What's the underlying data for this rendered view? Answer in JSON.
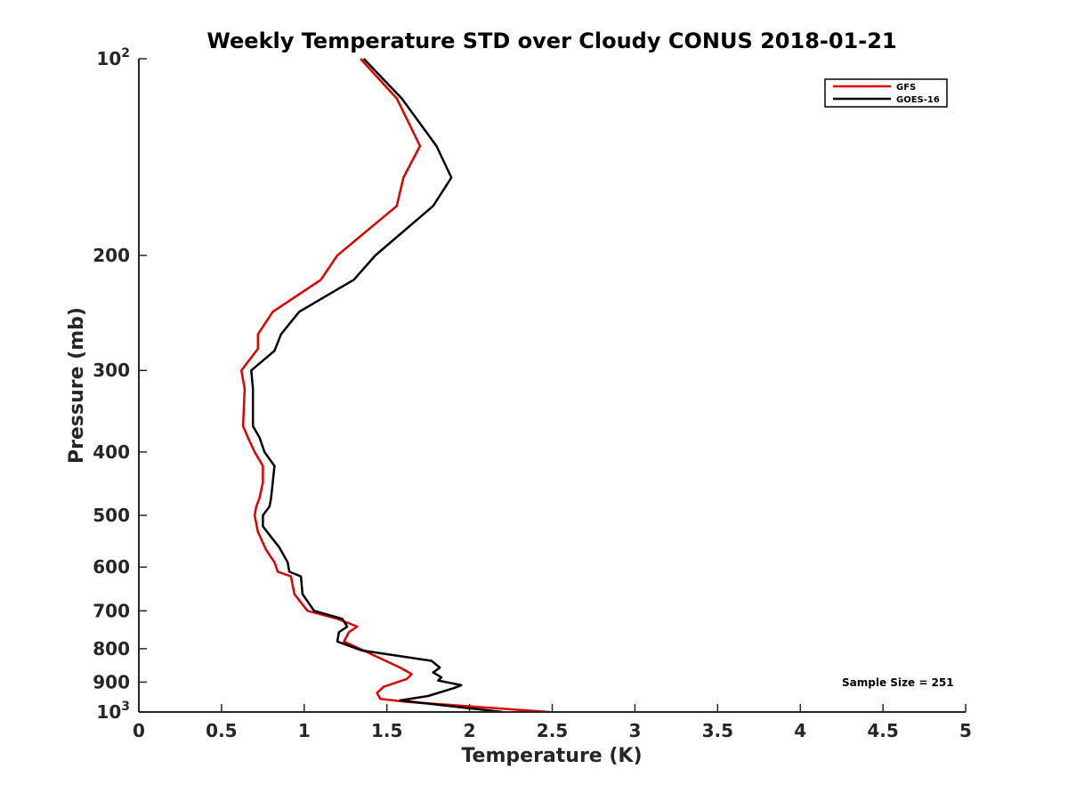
{
  "chart_data": {
    "type": "line",
    "title": "Weekly Temperature STD over Cloudy CONUS 2018-01-21",
    "xlabel": "Temperature (K)",
    "ylabel": "Pressure (mb)",
    "xlim": [
      0,
      5
    ],
    "ylim": [
      100,
      1000
    ],
    "yscale": "log",
    "y_reversed": true,
    "x_ticks": [
      "0",
      "0.5",
      "1",
      "1.5",
      "2",
      "2.5",
      "3",
      "3.5",
      "4",
      "4.5",
      "5"
    ],
    "y_ticks": [
      {
        "value": 100,
        "base": "10",
        "exp": "2",
        "label": "10^2"
      },
      {
        "value": 200,
        "base": "200",
        "exp": "",
        "label": "200"
      },
      {
        "value": 300,
        "base": "300",
        "exp": "",
        "label": "300"
      },
      {
        "value": 400,
        "base": "400",
        "exp": "",
        "label": "400"
      },
      {
        "value": 500,
        "base": "500",
        "exp": "",
        "label": "500"
      },
      {
        "value": 600,
        "base": "600",
        "exp": "",
        "label": "600"
      },
      {
        "value": 700,
        "base": "700",
        "exp": "",
        "label": "700"
      },
      {
        "value": 800,
        "base": "800",
        "exp": "",
        "label": "800"
      },
      {
        "value": 900,
        "base": "900",
        "exp": "",
        "label": "900"
      },
      {
        "value": 1000,
        "base": "10",
        "exp": "3",
        "label": "10^3"
      }
    ],
    "legend_position": "top-right",
    "annotation": "Sample Size = 251",
    "series": [
      {
        "name": "GFS",
        "color": "#e00000",
        "points": [
          [
            1.34,
            100
          ],
          [
            1.56,
            115
          ],
          [
            1.7,
            136
          ],
          [
            1.6,
            152
          ],
          [
            1.56,
            168
          ],
          [
            1.2,
            200
          ],
          [
            1.1,
            218
          ],
          [
            0.81,
            244
          ],
          [
            0.72,
            264
          ],
          [
            0.72,
            278
          ],
          [
            0.62,
            300
          ],
          [
            0.64,
            320
          ],
          [
            0.63,
            365
          ],
          [
            0.66,
            380
          ],
          [
            0.7,
            400
          ],
          [
            0.75,
            420
          ],
          [
            0.75,
            445
          ],
          [
            0.73,
            470
          ],
          [
            0.71,
            485
          ],
          [
            0.7,
            500
          ],
          [
            0.72,
            530
          ],
          [
            0.77,
            565
          ],
          [
            0.82,
            590
          ],
          [
            0.84,
            610
          ],
          [
            0.92,
            620
          ],
          [
            0.94,
            660
          ],
          [
            1.02,
            700
          ],
          [
            1.2,
            720
          ],
          [
            1.32,
            740
          ],
          [
            1.27,
            755
          ],
          [
            1.24,
            780
          ],
          [
            1.38,
            810
          ],
          [
            1.58,
            855
          ],
          [
            1.65,
            875
          ],
          [
            1.62,
            890
          ],
          [
            1.48,
            915
          ],
          [
            1.44,
            935
          ],
          [
            1.46,
            955
          ],
          [
            1.62,
            965
          ],
          [
            2.48,
            1000
          ]
        ]
      },
      {
        "name": "GOES-16",
        "color": "#000000",
        "points": [
          [
            1.36,
            100
          ],
          [
            1.59,
            115
          ],
          [
            1.8,
            136
          ],
          [
            1.89,
            152
          ],
          [
            1.78,
            168
          ],
          [
            1.43,
            200
          ],
          [
            1.3,
            218
          ],
          [
            0.97,
            244
          ],
          [
            0.86,
            264
          ],
          [
            0.82,
            280
          ],
          [
            0.68,
            300
          ],
          [
            0.69,
            320
          ],
          [
            0.69,
            365
          ],
          [
            0.73,
            380
          ],
          [
            0.76,
            400
          ],
          [
            0.82,
            420
          ],
          [
            0.81,
            445
          ],
          [
            0.8,
            470
          ],
          [
            0.79,
            485
          ],
          [
            0.75,
            500
          ],
          [
            0.75,
            520
          ],
          [
            0.85,
            560
          ],
          [
            0.9,
            590
          ],
          [
            0.91,
            610
          ],
          [
            0.98,
            620
          ],
          [
            0.99,
            660
          ],
          [
            1.06,
            700
          ],
          [
            1.23,
            720
          ],
          [
            1.26,
            740
          ],
          [
            1.21,
            755
          ],
          [
            1.2,
            780
          ],
          [
            1.35,
            805
          ],
          [
            1.77,
            835
          ],
          [
            1.82,
            855
          ],
          [
            1.78,
            870
          ],
          [
            1.83,
            885
          ],
          [
            1.81,
            895
          ],
          [
            1.95,
            910
          ],
          [
            1.9,
            920
          ],
          [
            1.75,
            945
          ],
          [
            1.58,
            960
          ],
          [
            2.2,
            1000
          ]
        ]
      }
    ]
  }
}
